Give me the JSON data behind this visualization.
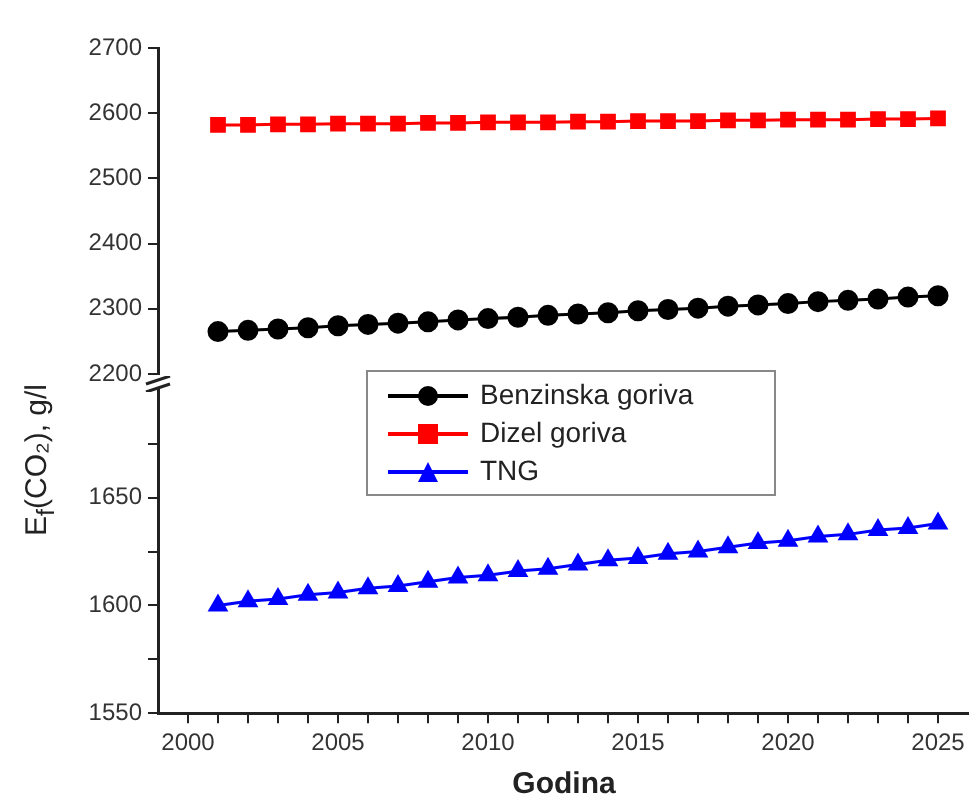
{
  "chart_data": [
    {
      "type": "line",
      "x": [
        2001,
        2002,
        2003,
        2004,
        2005,
        2006,
        2007,
        2008,
        2009,
        2010,
        2011,
        2012,
        2013,
        2014,
        2015,
        2016,
        2017,
        2018,
        2019,
        2020,
        2021,
        2022,
        2023,
        2024,
        2025
      ],
      "series": [
        {
          "name": "Benzinska goriva",
          "color": "#000000",
          "marker": "circle",
          "values": [
            2265,
            2267,
            2269,
            2271,
            2274,
            2276,
            2278,
            2280,
            2283,
            2285,
            2287,
            2290,
            2292,
            2294,
            2297,
            2299,
            2301,
            2304,
            2306,
            2308,
            2311,
            2313,
            2315,
            2318,
            2320
          ]
        },
        {
          "name": "Dizel goriva",
          "color": "#ff0000",
          "marker": "square",
          "values": [
            2582,
            2582,
            2583,
            2583,
            2584,
            2584,
            2584,
            2585,
            2585,
            2586,
            2586,
            2586,
            2587,
            2587,
            2588,
            2588,
            2588,
            2589,
            2589,
            2590,
            2590,
            2590,
            2591,
            2591,
            2592
          ]
        }
      ],
      "ylim": [
        2200,
        2700
      ],
      "yticks": [
        2200,
        2300,
        2400,
        2500,
        2600,
        2700
      ],
      "tick_labels": "y",
      "grid": false,
      "legend": "bottom"
    },
    {
      "type": "line",
      "x": [
        2001,
        2002,
        2003,
        2004,
        2005,
        2006,
        2007,
        2008,
        2009,
        2010,
        2011,
        2012,
        2013,
        2014,
        2015,
        2016,
        2017,
        2018,
        2019,
        2020,
        2021,
        2022,
        2023,
        2024,
        2025
      ],
      "series": [
        {
          "name": "TNG",
          "color": "#0000ff",
          "marker": "triangle",
          "values": [
            1600,
            1602,
            1603,
            1605,
            1606,
            1608,
            1609,
            1611,
            1613,
            1614,
            1616,
            1617,
            1619,
            1621,
            1622,
            1624,
            1625,
            1627,
            1629,
            1630,
            1632,
            1633,
            1635,
            1636,
            1638
          ]
        }
      ],
      "xlabel": "Godina",
      "ylabel": "E$_{f}$(CO₂), g/l",
      "xlim": [
        1999,
        2026
      ],
      "ylim": [
        1550,
        1700
      ],
      "xticks": [
        2000,
        {
          "value": 2001,
          "label": null
        },
        {
          "value": 2002,
          "label": null
        },
        {
          "value": 2003,
          "label": null
        },
        {
          "value": 2004,
          "label": null
        },
        2005,
        {
          "value": 2006,
          "label": null
        },
        {
          "value": 2007,
          "label": null
        },
        {
          "value": 2008,
          "label": null
        },
        {
          "value": 2009,
          "label": null
        },
        2010,
        {
          "value": 2011,
          "label": null
        },
        {
          "value": 2012,
          "label": null
        },
        {
          "value": 2013,
          "label": null
        },
        {
          "value": 2014,
          "label": null
        },
        2015,
        {
          "value": 2016,
          "label": null
        },
        {
          "value": 2017,
          "label": null
        },
        {
          "value": 2018,
          "label": null
        },
        {
          "value": 2019,
          "label": null
        },
        2020,
        {
          "value": 2021,
          "label": null
        },
        {
          "value": 2022,
          "label": null
        },
        {
          "value": 2023,
          "label": null
        },
        {
          "value": 2024,
          "label": null
        },
        2025
      ],
      "yticks": [
        1550,
        {
          "value": 1575,
          "label": null
        },
        1600,
        {
          "value": 1625,
          "label": null
        },
        1650,
        {
          "value": 1675,
          "label": null
        }
      ],
      "grid": false,
      "legend": "top"
    }
  ]
}
